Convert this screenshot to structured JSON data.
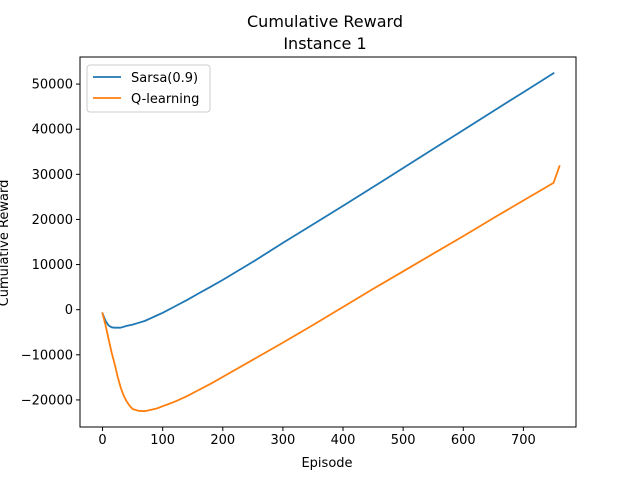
{
  "chart_data": {
    "type": "line",
    "title_line1": "Cumulative Reward",
    "title_line2": "Instance 1",
    "xlabel": "Episode",
    "ylabel": "Cumulative Reward",
    "xlim": [
      -37.5,
      787.5
    ],
    "ylim": [
      -26000,
      56000
    ],
    "xticks": [
      0,
      100,
      200,
      300,
      400,
      500,
      600,
      700
    ],
    "yticks": [
      -20000,
      -10000,
      0,
      10000,
      20000,
      30000,
      40000,
      50000
    ],
    "xtick_labels": [
      "0",
      "100",
      "200",
      "300",
      "400",
      "500",
      "600",
      "700"
    ],
    "ytick_labels": [
      "−20000",
      "−10000",
      "0",
      "10000",
      "20000",
      "30000",
      "40000",
      "50000"
    ],
    "grid": false,
    "legend_placement": "top-left",
    "series": [
      {
        "name": "Sarsa(0.9)",
        "color": "#1f77b4",
        "points": [
          [
            0,
            -800
          ],
          [
            5,
            -2500
          ],
          [
            10,
            -3500
          ],
          [
            15,
            -3900
          ],
          [
            20,
            -4000
          ],
          [
            30,
            -4000
          ],
          [
            40,
            -3600
          ],
          [
            50,
            -3300
          ],
          [
            60,
            -2900
          ],
          [
            70,
            -2500
          ],
          [
            80,
            -1900
          ],
          [
            90,
            -1300
          ],
          [
            100,
            -700
          ],
          [
            120,
            700
          ],
          [
            140,
            2100
          ],
          [
            160,
            3600
          ],
          [
            180,
            5100
          ],
          [
            200,
            6600
          ],
          [
            250,
            10600
          ],
          [
            300,
            14800
          ],
          [
            350,
            18900
          ],
          [
            400,
            23000
          ],
          [
            450,
            27200
          ],
          [
            500,
            31400
          ],
          [
            550,
            35600
          ],
          [
            600,
            39800
          ],
          [
            650,
            44000
          ],
          [
            700,
            48200
          ],
          [
            750,
            52400
          ]
        ]
      },
      {
        "name": "Q-learning",
        "color": "#ff7f0e",
        "points": [
          [
            0,
            -800
          ],
          [
            5,
            -3500
          ],
          [
            10,
            -6500
          ],
          [
            15,
            -9500
          ],
          [
            20,
            -12000
          ],
          [
            25,
            -14800
          ],
          [
            30,
            -17200
          ],
          [
            35,
            -19000
          ],
          [
            40,
            -20300
          ],
          [
            45,
            -21300
          ],
          [
            50,
            -22000
          ],
          [
            60,
            -22400
          ],
          [
            70,
            -22500
          ],
          [
            80,
            -22200
          ],
          [
            90,
            -21900
          ],
          [
            100,
            -21400
          ],
          [
            110,
            -20900
          ],
          [
            120,
            -20400
          ],
          [
            140,
            -19200
          ],
          [
            160,
            -17800
          ],
          [
            180,
            -16400
          ],
          [
            200,
            -14900
          ],
          [
            250,
            -11100
          ],
          [
            300,
            -7300
          ],
          [
            350,
            -3400
          ],
          [
            400,
            600
          ],
          [
            450,
            4600
          ],
          [
            500,
            8500
          ],
          [
            550,
            12400
          ],
          [
            600,
            16300
          ],
          [
            650,
            20300
          ],
          [
            700,
            24200
          ],
          [
            750,
            28100
          ],
          [
            760,
            31800
          ]
        ]
      }
    ]
  }
}
